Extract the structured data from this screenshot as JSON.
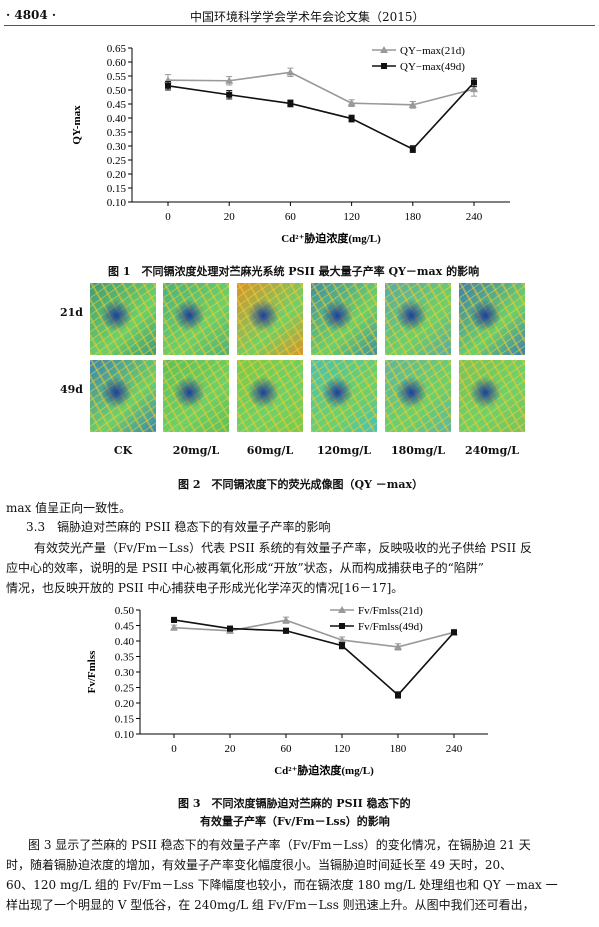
{
  "header": {
    "page_number": "· 4804 ·",
    "journal_title": "中国环境科学学会学术年会论文集（2015）"
  },
  "figure1": {
    "caption": "图 1　不同镉浓度处理对苎麻光系统 PSII 最大量子产率 QY－max 的影响",
    "chart_data": {
      "type": "line",
      "x": [
        "0",
        "20",
        "60",
        "120",
        "180",
        "240"
      ],
      "xlabel": "Cd²⁺胁迫浓度(mg/L)",
      "ylabel": "QY-max",
      "ylim": [
        0.1,
        0.65
      ],
      "yticks": [
        "0.10",
        "0.15",
        "0.20",
        "0.25",
        "0.30",
        "0.35",
        "0.40",
        "0.45",
        "0.50",
        "0.55",
        "0.60",
        "0.65"
      ],
      "legend_position": "top-right",
      "series": [
        {
          "name": "QY−max(21d)",
          "color": "#999999",
          "marker": "triangle",
          "values": [
            0.535,
            0.533,
            0.563,
            0.453,
            0.447,
            0.503
          ],
          "errors": [
            0.02,
            0.015,
            0.015,
            0.012,
            0.012,
            0.025
          ]
        },
        {
          "name": "QY−max(49d)",
          "color": "#111111",
          "marker": "square",
          "values": [
            0.515,
            0.483,
            0.452,
            0.398,
            0.289,
            0.527
          ],
          "errors": [
            0.015,
            0.015,
            0.012,
            0.012,
            0.012,
            0.015
          ]
        }
      ]
    }
  },
  "figure2": {
    "caption": "图 2　不同镉浓度下的荧光成像图（QY －max）",
    "row_labels": [
      "21d",
      "49d"
    ],
    "col_labels": [
      "CK",
      "20mg/L",
      "60mg/L",
      "120mg/L",
      "180mg/L",
      "240mg/L"
    ]
  },
  "text1": "max 值呈正向一致性。",
  "section_heading": "3.3　镉胁迫对苎麻的 PSII 稳态下的有效量子产率的影响",
  "para1": [
    "有效荧光产量（Fv/Fm－Lss）代表 PSII 系统的有效量子产率，反映吸收的光子供给 PSII 反",
    "应中心的效率，说明的是 PSII 中心被再氧化形成“开放”状态，从而构成捕获电子的“陷阱”",
    "情况，也反映开放的 PSII 中心捕获电子形成光化学淬灭的情况[16－17]。"
  ],
  "figure3": {
    "caption_line1": "图 3　不同浓度镉胁迫对苎麻的 PSII 稳态下的",
    "caption_line2": "有效量子产率（Fv/Fm－Lss）的影响",
    "chart_data": {
      "type": "line",
      "x": [
        "0",
        "20",
        "60",
        "120",
        "180",
        "240"
      ],
      "xlabel": "Cd²⁺胁迫浓度(mg/L)",
      "ylabel": "Fv/Fmlss",
      "ylim": [
        0.1,
        0.5
      ],
      "yticks": [
        "0.10",
        "0.15",
        "0.20",
        "0.25",
        "0.30",
        "0.35",
        "0.40",
        "0.45",
        "0.50"
      ],
      "legend_position": "top-right",
      "series": [
        {
          "name": "Fv/Fmlss(21d)",
          "color": "#999999",
          "marker": "triangle",
          "values": [
            0.443,
            0.433,
            0.467,
            0.403,
            0.381,
            0.428
          ],
          "errors": [
            0.008,
            0.008,
            0.01,
            0.01,
            0.01,
            0.008
          ]
        },
        {
          "name": "Fv/Fmlss(49d)",
          "color": "#111111",
          "marker": "square",
          "values": [
            0.468,
            0.44,
            0.433,
            0.385,
            0.226,
            0.428
          ],
          "errors": [
            0.008,
            0.008,
            0.008,
            0.01,
            0.01,
            0.008
          ]
        }
      ]
    }
  },
  "para2": [
    "图 3 显示了苎麻的 PSII 稳态下的有效量子产率（Fv/Fm－Lss）的变化情况，在镉胁迫 21 天",
    "时，随着镉胁迫浓度的增加，有效量子产率变化幅度很小。当镉胁迫时间延长至 49 天时，20、",
    "60、120 mg/L 组的 Fv/Fm－Lss 下降幅度也较小，而在镉浓度 180 mg/L 处理组也和 QY －max 一",
    "样出现了一个明显的 V 型低谷，在 240mg/L 组 Fv/Fm－Lss 则迅速上升。从图中我们还可看出，"
  ],
  "tile_colors": {
    "21d": [
      "#3f9a7a",
      "#4fb07a",
      "#d9922c",
      "#3f8fa2",
      "#5ba9a4",
      "#3b7fb0"
    ],
    "49d": [
      "#3b86b0",
      "#5fbf5a",
      "#7fc94a",
      "#49c0b4",
      "#5fb5a0",
      "#7fc25a"
    ]
  }
}
